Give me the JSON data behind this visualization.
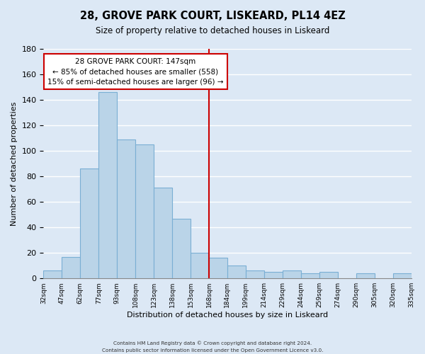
{
  "title": "28, GROVE PARK COURT, LISKEARD, PL14 4EZ",
  "subtitle": "Size of property relative to detached houses in Liskeard",
  "xlabel": "Distribution of detached houses by size in Liskeard",
  "ylabel": "Number of detached properties",
  "bar_labels": [
    "32sqm",
    "47sqm",
    "62sqm",
    "77sqm",
    "93sqm",
    "108sqm",
    "123sqm",
    "138sqm",
    "153sqm",
    "168sqm",
    "184sqm",
    "199sqm",
    "214sqm",
    "229sqm",
    "244sqm",
    "259sqm",
    "274sqm",
    "290sqm",
    "305sqm",
    "320sqm",
    "335sqm"
  ],
  "values": [
    6,
    17,
    86,
    146,
    109,
    105,
    71,
    47,
    20,
    16,
    10,
    6,
    5,
    6,
    4,
    5,
    0,
    4,
    0,
    4
  ],
  "bar_color": "#bad4e8",
  "bar_edge_color": "#7aafd4",
  "vline_color": "#cc0000",
  "vline_pos": 8.5,
  "annotation_title": "28 GROVE PARK COURT: 147sqm",
  "annotation_line1": "← 85% of detached houses are smaller (558)",
  "annotation_line2": "15% of semi-detached houses are larger (96) →",
  "annotation_box_color": "#ffffff",
  "annotation_box_edge": "#cc0000",
  "ylim": [
    0,
    180
  ],
  "yticks": [
    0,
    20,
    40,
    60,
    80,
    100,
    120,
    140,
    160,
    180
  ],
  "footnote1": "Contains HM Land Registry data © Crown copyright and database right 2024.",
  "footnote2": "Contains public sector information licensed under the Open Government Licence v3.0.",
  "bg_color": "#dce8f5"
}
